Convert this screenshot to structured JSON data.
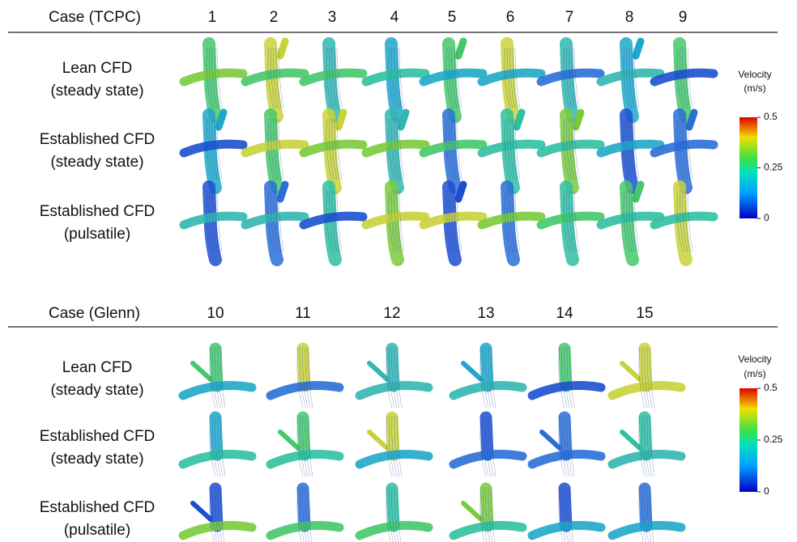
{
  "sections": [
    {
      "header": {
        "label": "Case (TCPC)",
        "cases": [
          "1",
          "2",
          "3",
          "4",
          "5",
          "6",
          "7",
          "8",
          "9"
        ]
      },
      "rows": [
        [
          "Lean CFD",
          "(steady state)"
        ],
        [
          "Established CFD",
          "(steady state)"
        ],
        [
          "Established CFD",
          "(pulsatile)"
        ]
      ],
      "colorbar": {
        "title": [
          "Velocity",
          "(m/s)"
        ],
        "ticks": [
          "0.5",
          "0.25",
          "0"
        ]
      }
    },
    {
      "header": {
        "label": "Case (Glenn)",
        "cases": [
          "10",
          "11",
          "12",
          "13",
          "14",
          "15"
        ]
      },
      "rows": [
        [
          "Lean CFD",
          "(steady state)"
        ],
        [
          "Established CFD",
          "(steady state)"
        ],
        [
          "Established CFD",
          "(pulsatile)"
        ]
      ],
      "colorbar": {
        "title": [
          "Velocity",
          "(m/s)"
        ],
        "ticks": [
          "0.5",
          "0.25",
          "0"
        ]
      }
    }
  ]
}
